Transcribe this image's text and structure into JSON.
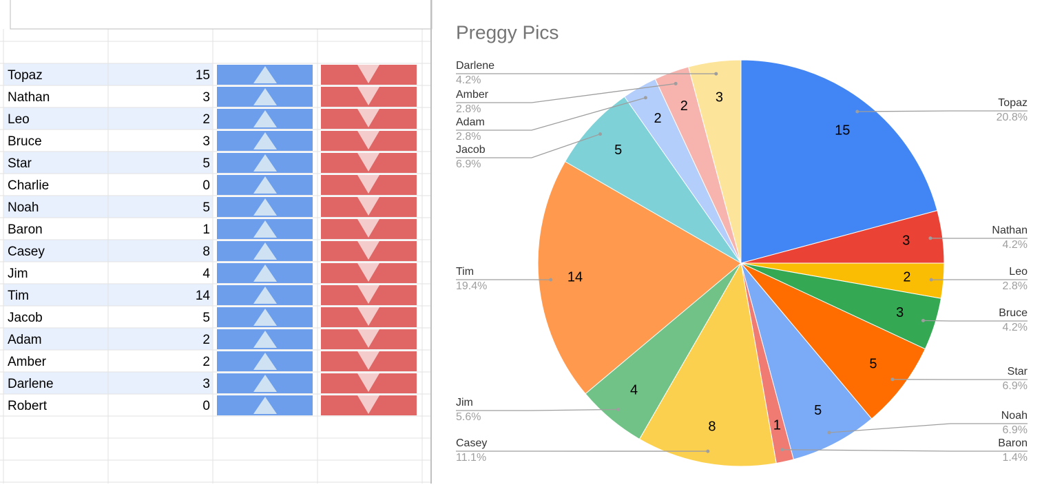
{
  "table": {
    "rows": [
      [
        "Topaz",
        15
      ],
      [
        "Nathan",
        3
      ],
      [
        "Leo",
        2
      ],
      [
        "Bruce",
        3
      ],
      [
        "Star",
        5
      ],
      [
        "Charlie",
        0
      ],
      [
        "Noah",
        5
      ],
      [
        "Baron",
        1
      ],
      [
        "Casey",
        8
      ],
      [
        "Jim",
        4
      ],
      [
        "Tim",
        14
      ],
      [
        "Jacob",
        5
      ],
      [
        "Adam",
        2
      ],
      [
        "Amber",
        2
      ],
      [
        "Darlene",
        3
      ],
      [
        "Robert",
        0
      ]
    ]
  },
  "chart_data": {
    "type": "pie",
    "title": "Preggy Pics",
    "categories": [
      "Topaz",
      "Nathan",
      "Leo",
      "Bruce",
      "Star",
      "Noah",
      "Baron",
      "Casey",
      "Jim",
      "Tim",
      "Jacob",
      "Adam",
      "Amber",
      "Darlene"
    ],
    "values": [
      15,
      3,
      2,
      3,
      5,
      5,
      1,
      8,
      4,
      14,
      5,
      2,
      2,
      3
    ],
    "percent_labels": [
      "20.8%",
      "4.2%",
      "2.8%",
      "4.2%",
      "6.9%",
      "6.9%",
      "1.4%",
      "11.1%",
      "5.6%",
      "19.4%",
      "6.9%",
      "2.8%",
      "2.8%",
      "4.2%"
    ],
    "colors": [
      "#4285f4",
      "#ea4335",
      "#fbbc04",
      "#34a853",
      "#ff6d01",
      "#7baaf7",
      "#f07b72",
      "#fcd04f",
      "#71c287",
      "#ff994d",
      "#7ed1d7",
      "#b3cefb",
      "#f7b4ae",
      "#fde49b"
    ]
  }
}
